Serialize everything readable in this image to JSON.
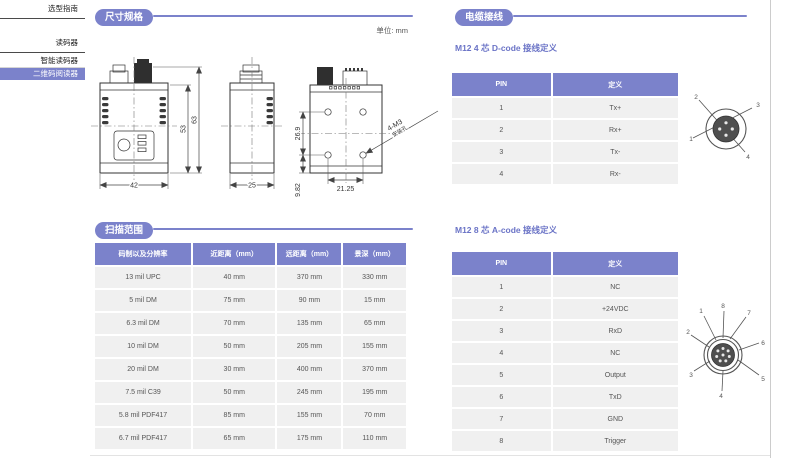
{
  "sidebar": {
    "items": [
      {
        "label": "选型指南"
      },
      {
        "label": "读码器"
      },
      {
        "label": "智能读码器"
      },
      {
        "label": "二维码阅读器",
        "active": true
      }
    ]
  },
  "dimension_section": {
    "title": "尺寸规格",
    "unit_label": "单位: mm",
    "front_view": {
      "width": "42",
      "height_inner": "53",
      "height_total": "63"
    },
    "side_view": {
      "width": "25"
    },
    "back_view": {
      "hole_spacing_vertical": "26.9",
      "hole_bottom_offset": "9.82",
      "hole_spacing_horizontal": "21.25",
      "hole_note_line1": "4-M3",
      "hole_note_line2": "安装孔"
    }
  },
  "scan_section": {
    "title": "扫描范围",
    "table": {
      "headers": [
        "码制以及分辨率",
        "近距离（mm）",
        "远距离（mm）",
        "景深（mm）"
      ],
      "rows": [
        [
          "13 mil UPC",
          "40 mm",
          "370 mm",
          "330 mm"
        ],
        [
          "5 mil DM",
          "75 mm",
          "90 mm",
          "15 mm"
        ],
        [
          "6.3 mil DM",
          "70 mm",
          "135 mm",
          "65 mm"
        ],
        [
          "10 mil DM",
          "50 mm",
          "205 mm",
          "155 mm"
        ],
        [
          "20 mil DM",
          "30 mm",
          "400 mm",
          "370 mm"
        ],
        [
          "7.5 mil C39",
          "50 mm",
          "245 mm",
          "195 mm"
        ],
        [
          "5.8 mil PDF417",
          "85 mm",
          "155 mm",
          "70 mm"
        ],
        [
          "6.7 mil PDF417",
          "65 mm",
          "175 mm",
          "110 mm"
        ]
      ]
    }
  },
  "cable_section": {
    "title": "电缆接线",
    "dcode": {
      "subtitle": "M12 4 芯 D-code 接线定义",
      "headers": [
        "PIN",
        "定义"
      ],
      "rows": [
        [
          "1",
          "Tx+"
        ],
        [
          "2",
          "Rx+"
        ],
        [
          "3",
          "Tx-"
        ],
        [
          "4",
          "Rx-"
        ]
      ],
      "pin_labels": [
        "1",
        "2",
        "3",
        "4"
      ]
    },
    "acode": {
      "subtitle": "M12 8 芯 A-code 接线定义",
      "headers": [
        "PIN",
        "定义"
      ],
      "rows": [
        [
          "1",
          "NC"
        ],
        [
          "2",
          "+24VDC"
        ],
        [
          "3",
          "RxD"
        ],
        [
          "4",
          "NC"
        ],
        [
          "5",
          "Output"
        ],
        [
          "6",
          "TxD"
        ],
        [
          "7",
          "GND"
        ],
        [
          "8",
          "Trigger"
        ]
      ],
      "pin_labels": [
        "1",
        "2",
        "3",
        "4",
        "5",
        "6",
        "7",
        "8"
      ]
    }
  },
  "colors": {
    "accent": "#7b82cb",
    "table_row_bg": "#f0f0f0",
    "text_dark": "#333333"
  }
}
